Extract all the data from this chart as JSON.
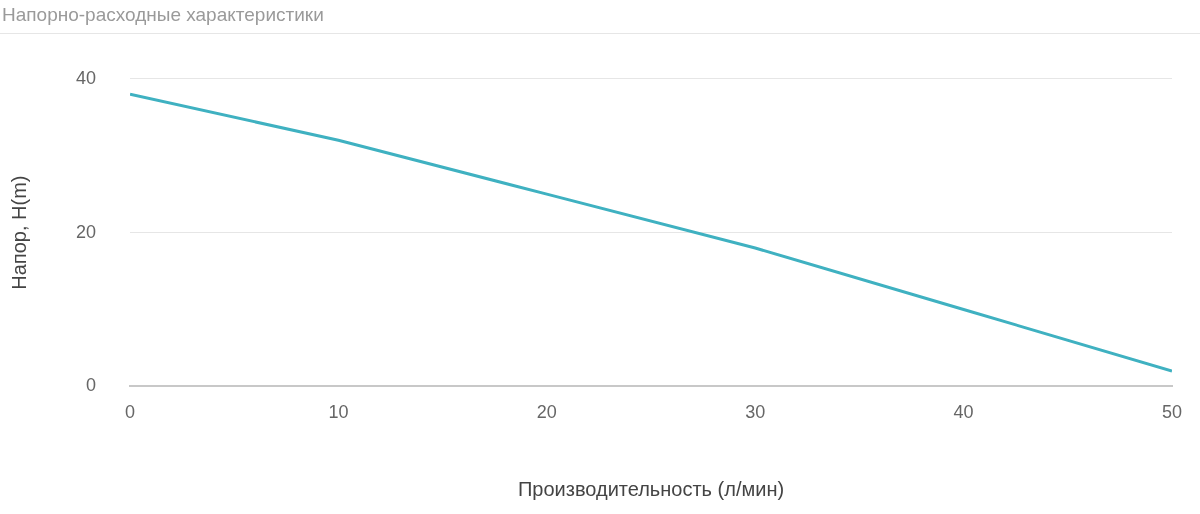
{
  "chart_data": {
    "type": "line",
    "title": "Напорно-расходные характеристики",
    "xlabel": "Производительность (л/мин)",
    "ylabel": "Напор, H(m)",
    "x": [
      0,
      10,
      20,
      30,
      40,
      50
    ],
    "series": [
      {
        "color": "#3fb1c1",
        "values": [
          38,
          32,
          25,
          18,
          10,
          2
        ]
      }
    ],
    "xlim": [
      0,
      50
    ],
    "xticks": [
      0,
      10,
      20,
      30,
      40,
      50
    ],
    "ylim": [
      0,
      40
    ],
    "yticks": [
      0,
      20,
      40
    ],
    "grid": "y",
    "marker": "none"
  }
}
